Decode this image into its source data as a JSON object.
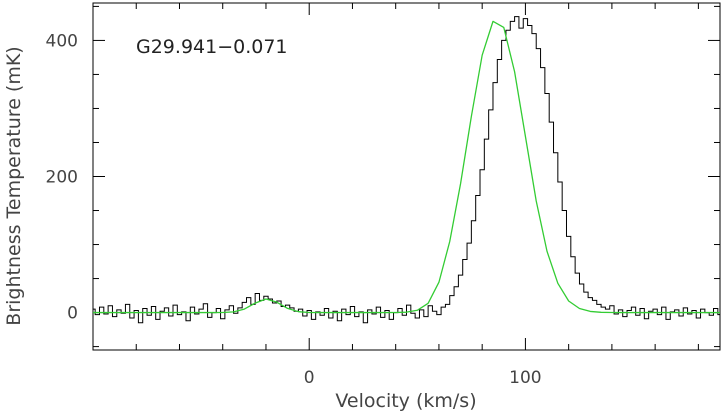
{
  "chart_data": {
    "type": "line",
    "annotation": "G29.941−0.071",
    "xlabel": "Velocity (km/s)",
    "ylabel": "Brightness Temperature (mK)",
    "xlim": [
      -100,
      190
    ],
    "ylim": [
      -55,
      455
    ],
    "x_ticks": [
      0,
      100
    ],
    "y_ticks": [
      0,
      200,
      400
    ],
    "x_tick_labels": [
      "0",
      "100"
    ],
    "y_tick_labels": [
      "0",
      "200",
      "400"
    ],
    "grid": false,
    "series": [
      {
        "style": "histogram-step",
        "color": "#000000",
        "x": [
          -100,
          -98,
          -96,
          -94,
          -92,
          -90,
          -88,
          -86,
          -84,
          -82,
          -80,
          -78,
          -76,
          -74,
          -72,
          -70,
          -68,
          -66,
          -64,
          -62,
          -60,
          -58,
          -56,
          -54,
          -52,
          -50,
          -48,
          -46,
          -44,
          -42,
          -40,
          -38,
          -36,
          -34,
          -32,
          -30,
          -28,
          -26,
          -24,
          -22,
          -20,
          -18,
          -16,
          -14,
          -12,
          -10,
          -8,
          -6,
          -4,
          -2,
          0,
          2,
          4,
          6,
          8,
          10,
          12,
          14,
          16,
          18,
          20,
          22,
          24,
          26,
          28,
          30,
          32,
          34,
          36,
          38,
          40,
          42,
          44,
          46,
          48,
          50,
          52,
          54,
          56,
          58,
          60,
          62,
          64,
          66,
          68,
          70,
          72,
          74,
          76,
          78,
          80,
          82,
          84,
          86,
          88,
          90,
          92,
          94,
          96,
          98,
          100,
          102,
          104,
          106,
          108,
          110,
          112,
          114,
          116,
          118,
          120,
          122,
          124,
          126,
          128,
          130,
          132,
          134,
          136,
          138,
          140,
          142,
          144,
          146,
          148,
          150,
          152,
          154,
          156,
          158,
          160,
          162,
          164,
          166,
          168,
          170,
          172,
          174,
          176,
          178,
          180,
          182,
          184,
          186,
          188,
          190
        ],
        "y": [
          5,
          -3,
          8,
          -2,
          10,
          -6,
          4,
          -1,
          12,
          -8,
          3,
          -15,
          6,
          -4,
          9,
          -10,
          2,
          7,
          -5,
          11,
          -3,
          1,
          -12,
          8,
          -2,
          5,
          13,
          -7,
          0,
          6,
          -9,
          4,
          10,
          -1,
          7,
          15,
          22,
          12,
          28,
          18,
          24,
          20,
          14,
          17,
          9,
          11,
          7,
          2,
          5,
          -5,
          3,
          -10,
          1,
          -4,
          6,
          -8,
          2,
          -12,
          5,
          -3,
          9,
          -6,
          1,
          -15,
          4,
          -2,
          8,
          -7,
          3,
          -10,
          0,
          6,
          -4,
          11,
          -1,
          -8,
          4,
          -6,
          10,
          2,
          -3,
          8,
          12,
          25,
          38,
          55,
          78,
          102,
          135,
          172,
          210,
          255,
          298,
          338,
          372,
          400,
          415,
          428,
          435,
          418,
          432,
          422,
          410,
          388,
          360,
          322,
          280,
          235,
          192,
          150,
          112,
          82,
          58,
          42,
          30,
          22,
          18,
          12,
          8,
          5,
          10,
          -2,
          4,
          -6,
          3,
          8,
          -4,
          6,
          -9,
          2,
          5,
          -3,
          8,
          -10,
          1,
          4,
          -5,
          7,
          -2,
          3,
          -8,
          5,
          0,
          -4,
          6,
          -3
        ]
      },
      {
        "style": "smooth-line",
        "color": "#33cc33",
        "x": [
          -100,
          -95,
          -90,
          -85,
          -80,
          -75,
          -70,
          -65,
          -60,
          -55,
          -50,
          -45,
          -40,
          -35,
          -30,
          -25,
          -20,
          -15,
          -10,
          -5,
          0,
          5,
          10,
          15,
          20,
          25,
          30,
          35,
          40,
          45,
          50,
          55,
          60,
          65,
          70,
          75,
          80,
          85,
          90,
          95,
          100,
          105,
          110,
          115,
          120,
          125,
          130,
          135,
          140,
          145,
          150,
          155,
          160,
          165,
          170,
          175,
          180,
          185,
          190
        ],
        "y": [
          0,
          0,
          0,
          0,
          0,
          0,
          0,
          0,
          0,
          0,
          0,
          0,
          0.1,
          1.0,
          5.1,
          13.9,
          20.0,
          15.3,
          6.1,
          1.3,
          0.1,
          0,
          0,
          0,
          0,
          0,
          0,
          0,
          0.1,
          0.6,
          3.4,
          13.6,
          44.6,
          104.5,
          189.3,
          288.3,
          378.3,
          428,
          419,
          354,
          259,
          164,
          90,
          43,
          17,
          6,
          1.7,
          0.4,
          0.1,
          0,
          0,
          0,
          0,
          0,
          0,
          0,
          0,
          0,
          0
        ]
      }
    ]
  }
}
